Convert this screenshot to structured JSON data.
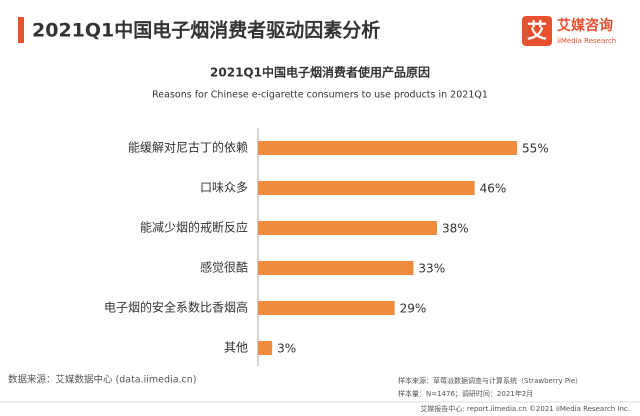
{
  "header": {
    "title": "2021Q1中国电子烟消费者驱动因素分析",
    "logo_icon": "艾",
    "logo_name": "艾媒咨询",
    "logo_sub": "iiMedia Research"
  },
  "chart_data": {
    "type": "bar",
    "orientation": "horizontal",
    "title": "2021Q1中国电子烟消费者使用产品原因",
    "subtitle": "Reasons for Chinese e-cigarette consumers to use products in 2021Q1",
    "categories": [
      "能缓解对尼古丁的依赖",
      "口味众多",
      "能减少烟的戒断反应",
      "感觉很酷",
      "电子烟的安全系数比香烟高",
      "其他"
    ],
    "values": [
      55,
      46,
      38,
      33,
      29,
      3
    ],
    "value_labels": [
      "55%",
      "46%",
      "38%",
      "33%",
      "29%",
      "3%"
    ],
    "color": "#f08a3c"
  },
  "source": "数据来源：艾媒数据中心 (data.iimedia.cn)",
  "sample_notes": [
    "样本来源：草莓派数据调查与计算系统（Strawberry Pie）",
    "样本量：N=1476；调研时间：2021年2月"
  ],
  "footer": "艾媒报告中心: report.iimedia.cn  ©2021  iiMedia Research Inc."
}
